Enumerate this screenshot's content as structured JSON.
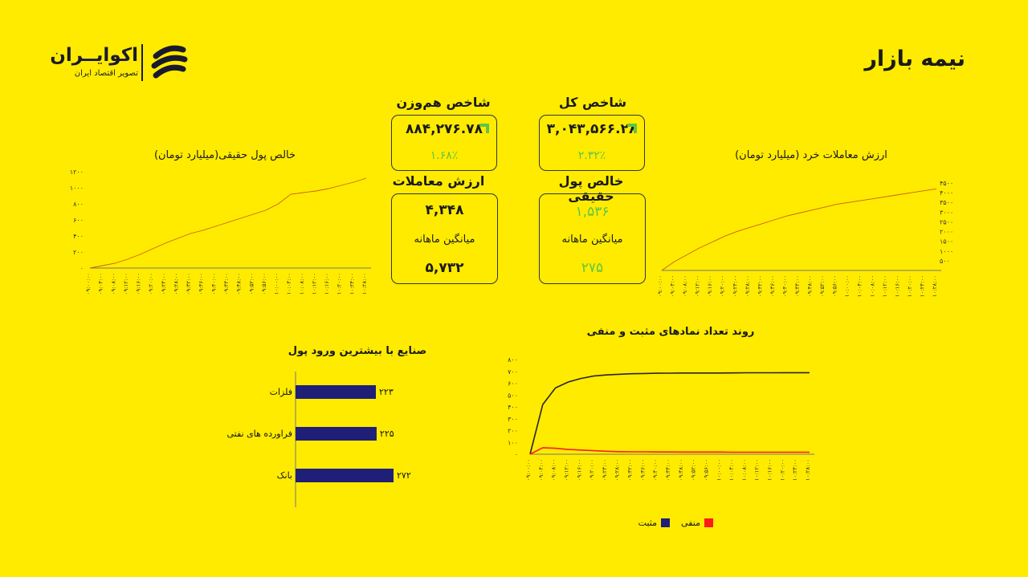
{
  "logo": {
    "name": "اکوایــران",
    "subtitle": "تصویر اقتصاد ایران"
  },
  "page_title": "نیمه بازار",
  "cards": {
    "total_index": {
      "title": "شاخص کل",
      "value": "۳,۰۴۳,۵۶۶.۲۸",
      "change": "۲.۳۲٪"
    },
    "equal_weight_index": {
      "title": "شاخص هم‌وزن",
      "value": "۸۸۴,۲۷۶.۷۸",
      "change": "۱.۶۸٪"
    },
    "trade_value": {
      "title": "ارزش معاملات",
      "value": "۴,۳۴۸",
      "avg_label": "میانگین ماهانه",
      "avg_value": "۵,۷۳۲"
    },
    "net_real_money": {
      "title": "خالص پول حقیقی",
      "value": "۱,۵۳۶",
      "avg_label": "میانگین ماهانه",
      "avg_value": "۲۷۵"
    }
  },
  "colors": {
    "background": "#ffeb00",
    "green": "#62c442",
    "navy": "#1f1f78",
    "line": "#c9620f",
    "negative": "#ff1a1a",
    "positive_line": "#2a2324"
  },
  "chart_data": [
    {
      "id": "net_real_money",
      "type": "line",
      "title": "خالص پول حقیقی(میلیارد تومان)",
      "x": [
        "۰۹:۰۰:۰۰",
        "۰۹:۰۴:۰۰",
        "۰۹:۰۸:۰۰",
        "۰۹:۱۲:۰۰",
        "۰۹:۱۶:۰۰",
        "۰۹:۲۰:۰۰",
        "۰۹:۲۴:۰۰",
        "۰۹:۲۸:۰۰",
        "۰۹:۳۲:۰۰",
        "۰۹:۳۶:۰۰",
        "۰۹:۴۰:۰۰",
        "۰۹:۴۴:۰۰",
        "۰۹:۴۸:۰۰",
        "۰۹:۵۲:۰۰",
        "۰۹:۵۶:۰۰",
        "۱۰:۰۰:۰۰",
        "۱۰:۰۴:۰۰",
        "۱۰:۰۸:۰۰",
        "۱۰:۱۲:۰۰",
        "۱۰:۱۶:۰۰",
        "۱۰:۲۰:۰۰",
        "۱۰:۲۴:۰۰",
        "۱۰:۲۸:۰۰"
      ],
      "values": [
        0,
        30,
        60,
        110,
        170,
        240,
        310,
        370,
        430,
        470,
        520,
        570,
        620,
        670,
        720,
        800,
        920,
        940,
        960,
        990,
        1030,
        1070,
        1120
      ],
      "yticks": [
        "۰",
        "۲۰۰",
        "۴۰۰",
        "۶۰۰",
        "۸۰۰",
        "۱۰۰۰",
        "۱۲۰۰"
      ],
      "ylim": [
        0,
        1200
      ]
    },
    {
      "id": "retail_trade_value",
      "type": "line",
      "title": "ارزش معاملات خرد (میلیارد تومان)",
      "x": [
        "۰۹:۰۰:۰۰",
        "۰۹:۰۴:۰۰",
        "۰۹:۰۸:۰۰",
        "۰۹:۱۲:۰۰",
        "۰۹:۱۶:۰۰",
        "۰۹:۲۰:۰۰",
        "۰۹:۲۴:۰۰",
        "۰۹:۲۸:۰۰",
        "۰۹:۳۲:۰۰",
        "۰۹:۳۶:۰۰",
        "۰۹:۴۰:۰۰",
        "۰۹:۴۴:۰۰",
        "۰۹:۴۸:۰۰",
        "۰۹:۵۲:۰۰",
        "۰۹:۵۶:۰۰",
        "۱۰:۰۰:۰۰",
        "۱۰:۰۴:۰۰",
        "۱۰:۰۸:۰۰",
        "۱۰:۱۲:۰۰",
        "۱۰:۱۶:۰۰",
        "۱۰:۲۰:۰۰",
        "۱۰:۲۴:۰۰",
        "۱۰:۲۸:۰۰"
      ],
      "values": [
        0,
        450,
        800,
        1150,
        1450,
        1750,
        2000,
        2200,
        2400,
        2600,
        2800,
        2950,
        3100,
        3250,
        3400,
        3500,
        3600,
        3700,
        3800,
        3900,
        4000,
        4100,
        4200
      ],
      "yticks": [
        "۵۰۰",
        "۱۰۰۰",
        "۱۵۰۰",
        "۲۰۰۰",
        "۲۵۰۰",
        "۳۰۰۰",
        "۳۵۰۰",
        "۴۰۰۰",
        "۴۵۰۰"
      ],
      "ylim": [
        0,
        4500
      ]
    },
    {
      "id": "industries_inflow",
      "type": "bar",
      "title": "صنایع با بیشترین ورود پول",
      "categories": [
        "فلزات",
        "فراورده های نفتی",
        "بانک"
      ],
      "values": [
        223,
        225,
        272
      ],
      "labels": [
        "۲۲۳",
        "۲۲۵",
        "۲۷۲"
      ]
    },
    {
      "id": "positive_negative_trend",
      "type": "line",
      "title": "روند تعداد نمادهای مثبت و منفی",
      "x": [
        "۰۹:۰۰:۰۰",
        "۰۹:۰۴:۰۰",
        "۰۹:۰۸:۰۰",
        "۰۹:۱۲:۰۰",
        "۰۹:۱۶:۰۰",
        "۰۹:۲۰:۰۰",
        "۰۹:۲۴:۰۰",
        "۰۹:۲۸:۰۰",
        "۰۹:۳۲:۰۰",
        "۰۹:۳۶:۰۰",
        "۰۹:۴۰:۰۰",
        "۰۹:۴۴:۰۰",
        "۰۹:۴۸:۰۰",
        "۰۹:۵۲:۰۰",
        "۰۹:۵۶:۰۰",
        "۱۰:۰۰:۰۰",
        "۱۰:۰۴:۰۰",
        "۱۰:۰۸:۰۰",
        "۱۰:۱۲:۰۰",
        "۱۰:۱۶:۰۰",
        "۱۰:۲۰:۰۰",
        "۱۰:۲۴:۰۰",
        "۱۰:۲۸:۰۰"
      ],
      "series": [
        {
          "name": "مثبت",
          "values": [
            0,
            420,
            560,
            610,
            640,
            660,
            670,
            675,
            680,
            682,
            684,
            685,
            686,
            686,
            686,
            686,
            687,
            688,
            688,
            688,
            689,
            689,
            689
          ]
        },
        {
          "name": "منفی",
          "values": [
            0,
            55,
            50,
            40,
            35,
            30,
            25,
            22,
            20,
            20,
            19,
            19,
            18,
            18,
            18,
            18,
            17,
            17,
            17,
            17,
            17,
            17,
            17
          ]
        }
      ],
      "yticks": [
        "۰",
        "۱۰۰",
        "۲۰۰",
        "۳۰۰",
        "۴۰۰",
        "۵۰۰",
        "۶۰۰",
        "۷۰۰",
        "۸۰۰"
      ],
      "ylim": [
        0,
        800
      ],
      "legend": "bottom"
    }
  ]
}
